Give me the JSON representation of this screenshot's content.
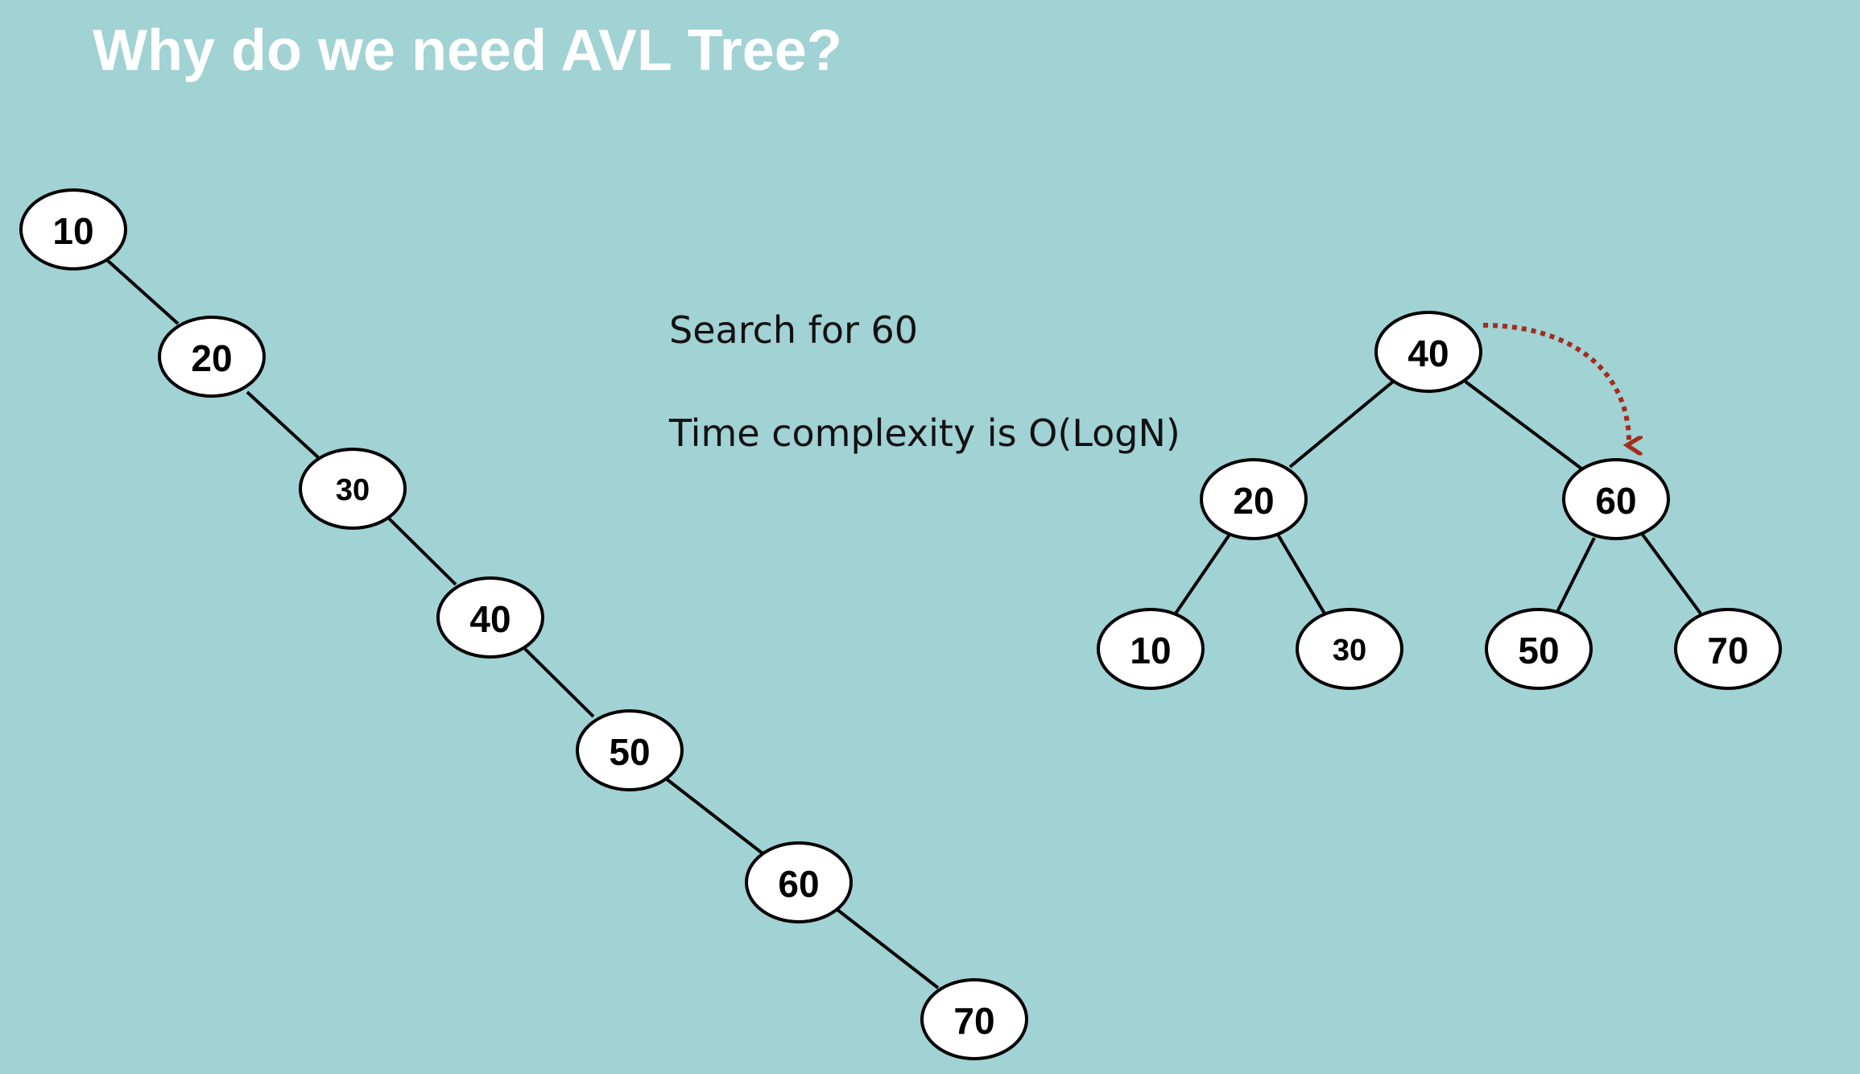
{
  "slide": {
    "title": "Why do we need AVL Tree?",
    "notes": [
      "Search for 60",
      "Time complexity is O(LogN)"
    ]
  },
  "colors": {
    "background": "#a1d2d4",
    "title": "#ffffff",
    "node_fill": "#ffffff",
    "outline": "#000000",
    "search_arrow": "#a32c1f"
  },
  "skewed_tree": {
    "nodes": [
      "10",
      "20",
      "30",
      "40",
      "50",
      "60",
      "70"
    ],
    "edges": [
      [
        "10",
        "20"
      ],
      [
        "20",
        "30"
      ],
      [
        "30",
        "40"
      ],
      [
        "40",
        "50"
      ],
      [
        "50",
        "60"
      ],
      [
        "60",
        "70"
      ]
    ]
  },
  "balanced_tree": {
    "nodes": [
      "40",
      "20",
      "60",
      "10",
      "30",
      "50",
      "70"
    ],
    "edges": [
      [
        "40",
        "20"
      ],
      [
        "40",
        "60"
      ],
      [
        "20",
        "10"
      ],
      [
        "20",
        "30"
      ],
      [
        "60",
        "50"
      ],
      [
        "60",
        "70"
      ]
    ],
    "search_arrow": {
      "from": "40",
      "to": "60",
      "style": "dotted"
    }
  }
}
